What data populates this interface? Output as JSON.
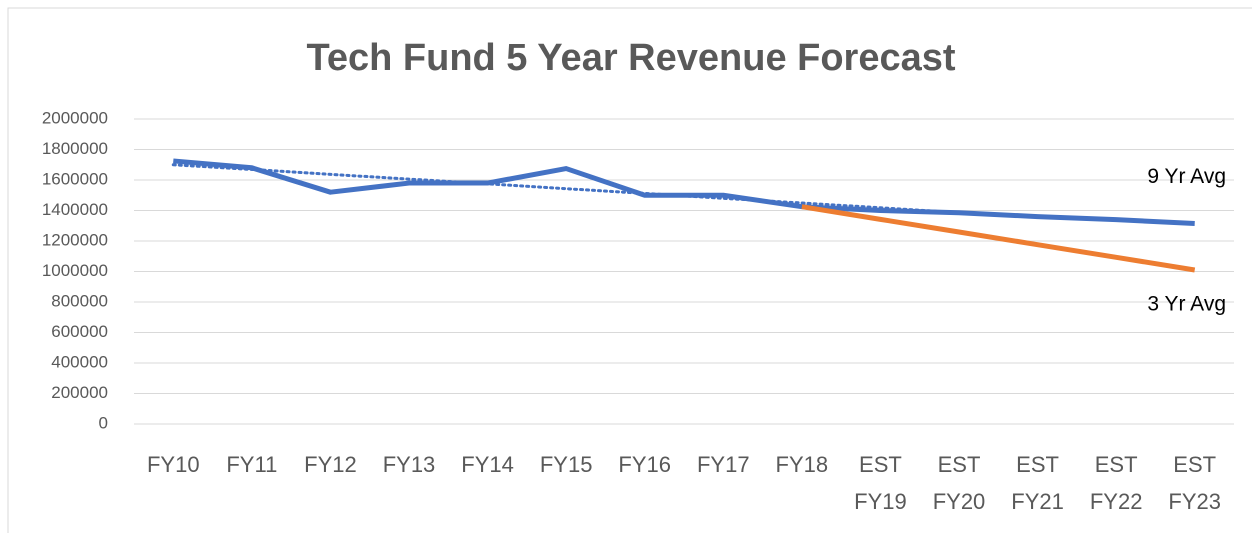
{
  "chart_data": {
    "type": "line",
    "title": "Tech Fund 5 Year Revenue Forecast",
    "categories": [
      "FY10",
      "FY11",
      "FY12",
      "FY13",
      "FY14",
      "FY15",
      "FY16",
      "FY17",
      "FY18",
      "EST FY19",
      "EST FY20",
      "EST FY21",
      "EST FY22",
      "EST FY23"
    ],
    "series": [
      {
        "name": "9 Yr Avg",
        "color": "#4472c4",
        "values": [
          1725000,
          1680000,
          1520000,
          1580000,
          1580000,
          1675000,
          1500000,
          1500000,
          1425000,
          1400000,
          1385000,
          1360000,
          1340000,
          1315000
        ]
      },
      {
        "name": "3 Yr Avg",
        "color": "#ed7d31",
        "values": [
          null,
          null,
          null,
          null,
          null,
          null,
          null,
          null,
          1425000,
          1342000,
          1259000,
          1176000,
          1093000,
          1010000
        ]
      }
    ],
    "trendline": {
      "color": "#4472c4",
      "style": "dotted",
      "values": [
        1700000,
        1669000,
        1637000,
        1606000,
        1575000,
        1543000,
        1512000,
        1480000,
        1449000,
        1418000,
        1386000,
        null,
        null,
        null
      ]
    },
    "ylim": [
      0,
      2000000
    ],
    "yticks": [
      0,
      200000,
      400000,
      600000,
      800000,
      1000000,
      1200000,
      1400000,
      1600000,
      1800000,
      2000000
    ],
    "grid": true
  }
}
